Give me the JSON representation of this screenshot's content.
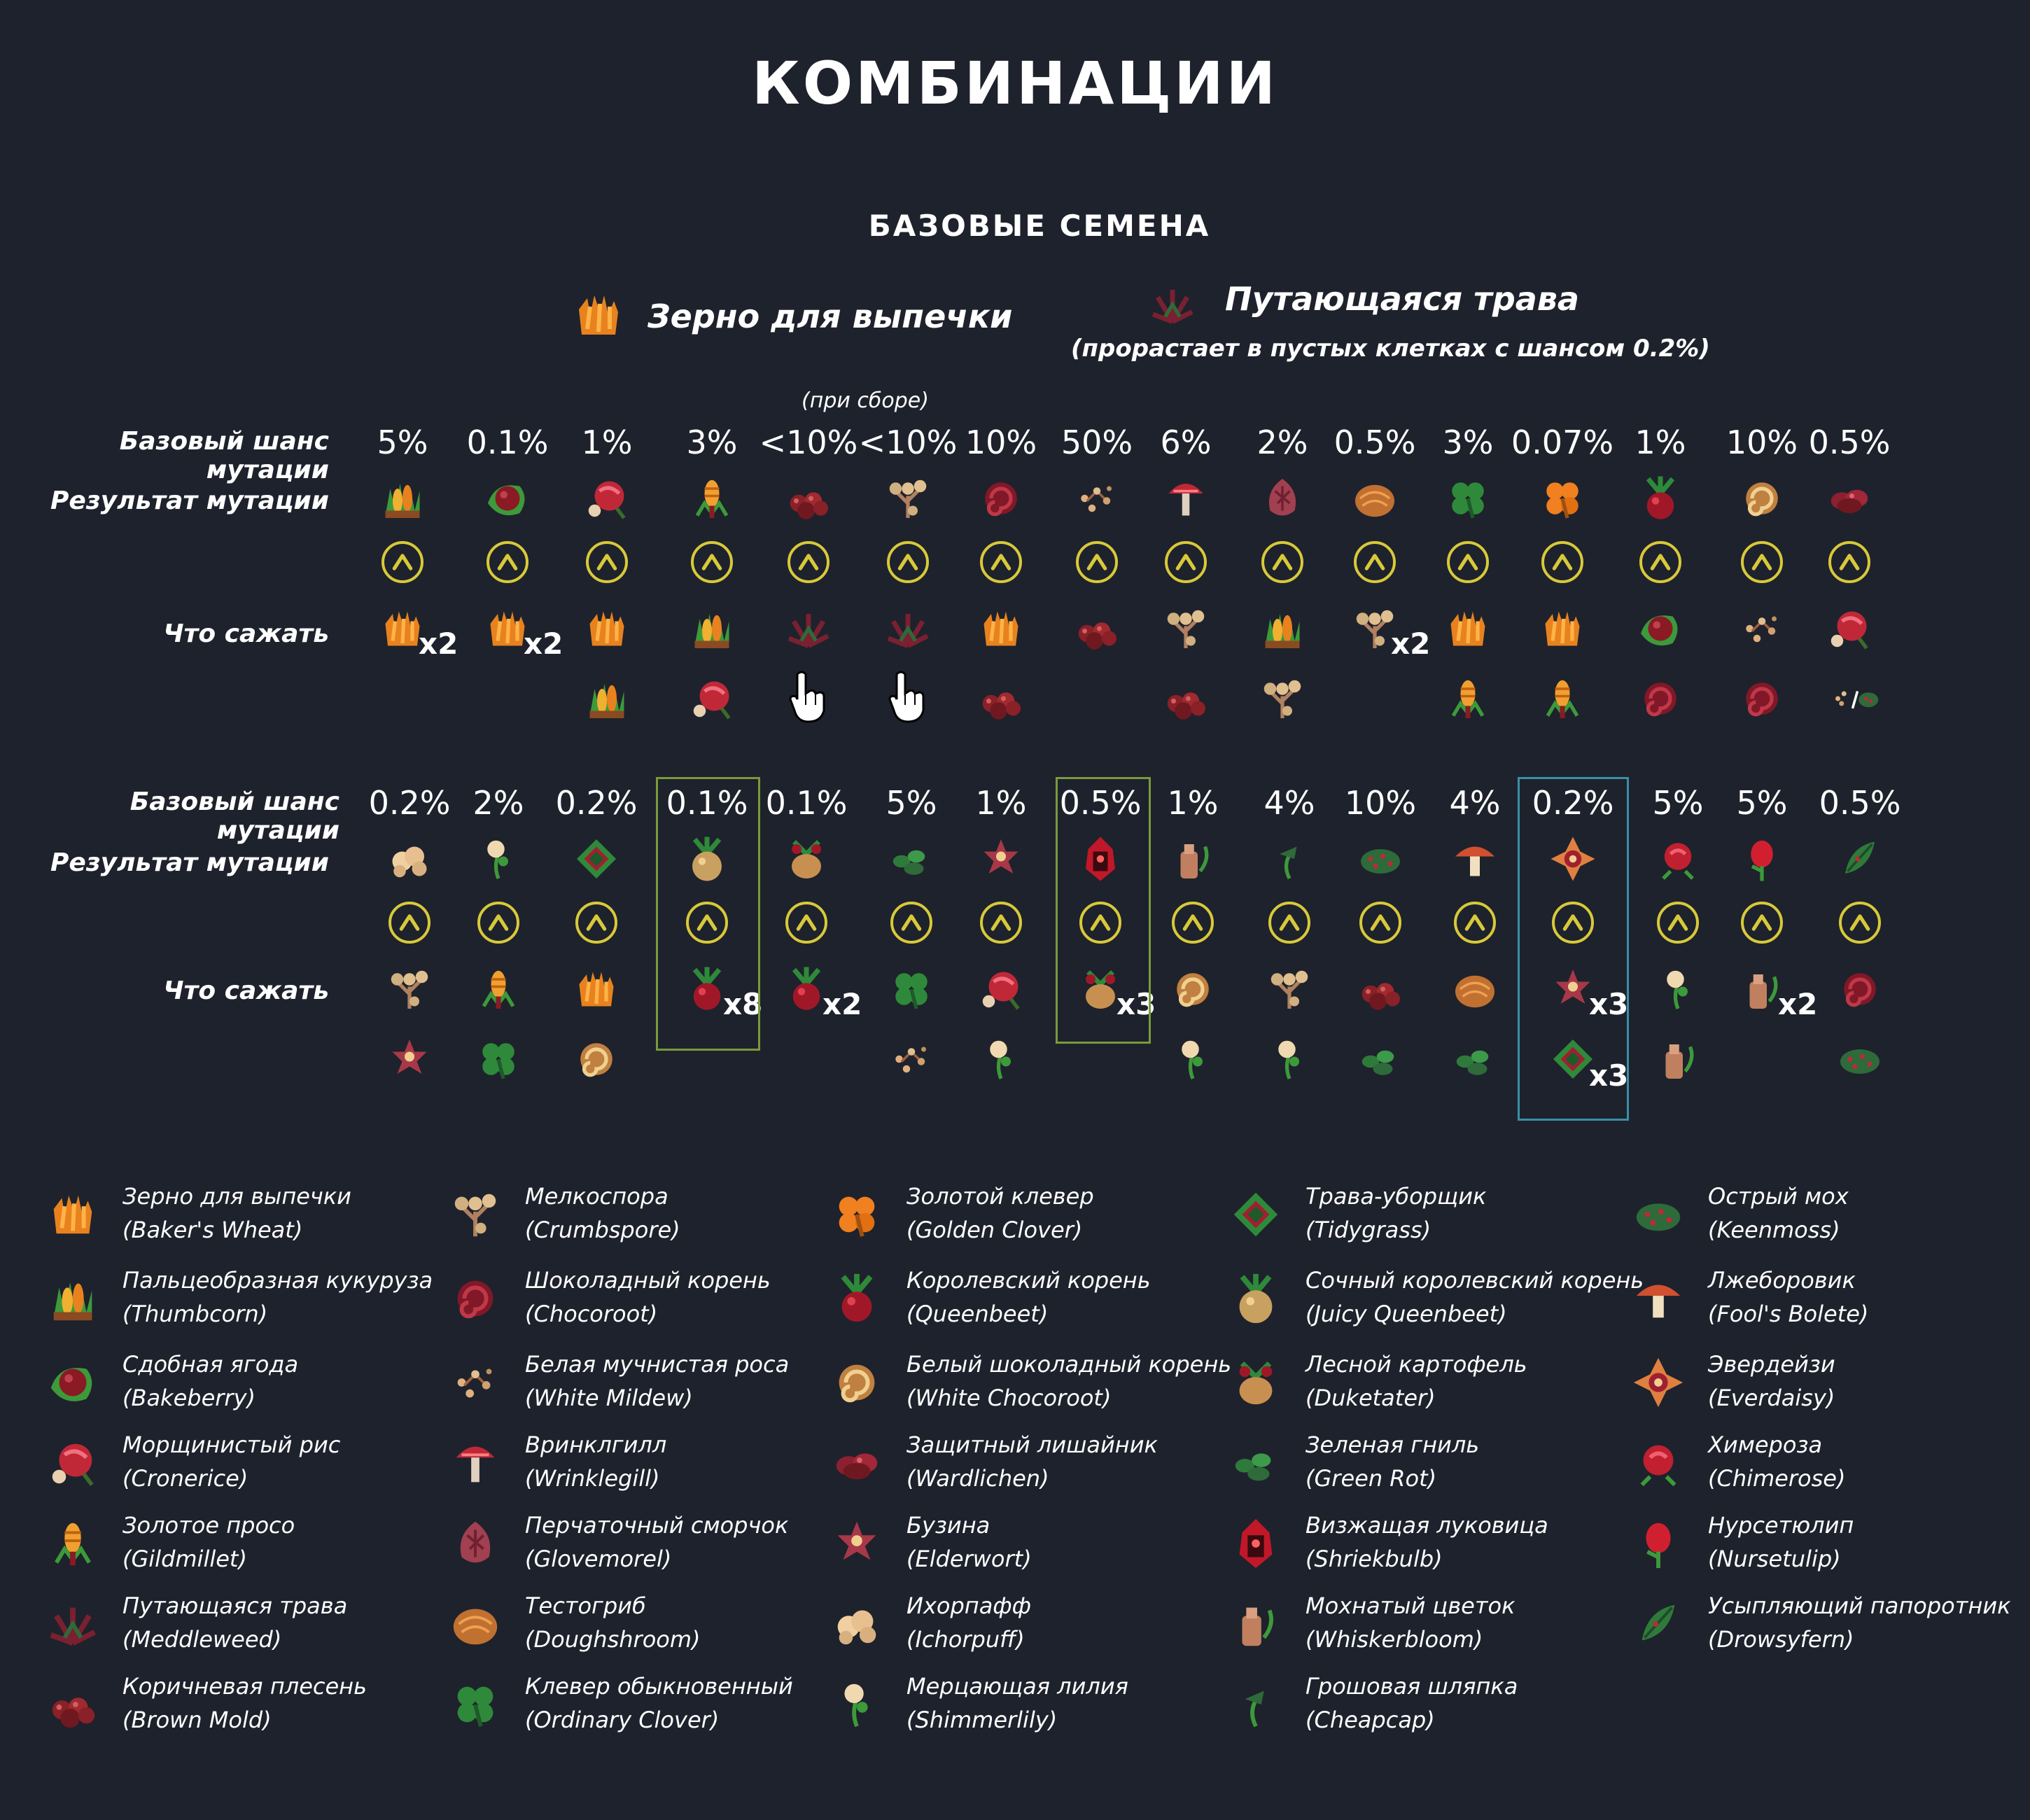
{
  "title": "КОМБИНАЦИИ",
  "subtitle": "БАЗОВЫЕ СЕМЕНА",
  "base_seeds": {
    "wheat": {
      "name": "Зерно для выпечки",
      "icon": "bakers-wheat-icon"
    },
    "meddle": {
      "name": "Путающаяся трава",
      "note": "(прорастает в пустых клетках с шансом 0.2%)",
      "icon": "meddleweed-icon"
    }
  },
  "harvest_note": "(при сборе)",
  "labels": {
    "chance": "Базовый шанс мутации",
    "result": "Результат мутации",
    "plant": "Что сажать"
  },
  "colors": {
    "background": "#1e222c",
    "arrow": "#d8c93a",
    "highlight_green": "#7a9a3a",
    "highlight_teal": "#3a8fa8"
  },
  "table1": [
    {
      "chance": "5%",
      "result": "thumbcorn",
      "plant": [
        "bakers-wheat"
      ],
      "mult": "x2"
    },
    {
      "chance": "0.1%",
      "result": "bakeberry",
      "plant": [
        "bakers-wheat"
      ],
      "mult": "x2"
    },
    {
      "chance": "1%",
      "result": "cronerice",
      "plant": [
        "bakers-wheat",
        "thumbcorn"
      ],
      "mult": ""
    },
    {
      "chance": "3%",
      "result": "gildmillet",
      "plant": [
        "thumbcorn",
        "cronerice"
      ],
      "mult": ""
    },
    {
      "chance": "<10%",
      "result": "brown-mold",
      "plant": [
        "meddleweed",
        "hand"
      ],
      "mult": ""
    },
    {
      "chance": "<10%",
      "result": "crumbspore",
      "plant": [
        "meddleweed",
        "hand"
      ],
      "mult": ""
    },
    {
      "chance": "10%",
      "result": "chocoroot",
      "plant": [
        "bakers-wheat",
        "brown-mold"
      ],
      "mult": ""
    },
    {
      "chance": "50%",
      "result": "white-mildew",
      "plant": [
        "brown-mold"
      ],
      "mult": ""
    },
    {
      "chance": "6%",
      "result": "wrinklegill",
      "plant": [
        "crumbspore",
        "brown-mold"
      ],
      "mult": ""
    },
    {
      "chance": "2%",
      "result": "glovemorel",
      "plant": [
        "thumbcorn",
        "crumbspore"
      ],
      "mult": ""
    },
    {
      "chance": "0.5%",
      "result": "doughshroom",
      "plant": [
        "crumbspore"
      ],
      "mult": "x2"
    },
    {
      "chance": "3%",
      "result": "ordinary-clover",
      "plant": [
        "bakers-wheat",
        "gildmillet"
      ],
      "mult": ""
    },
    {
      "chance": "0.07%",
      "result": "golden-clover",
      "plant": [
        "bakers-wheat",
        "gildmillet"
      ],
      "mult": ""
    },
    {
      "chance": "1%",
      "result": "queenbeet",
      "plant": [
        "bakeberry",
        "chocoroot"
      ],
      "mult": ""
    },
    {
      "chance": "10%",
      "result": "white-chocoroot",
      "plant": [
        "white-mildew",
        "chocoroot"
      ],
      "mult": ""
    },
    {
      "chance": "0.5%",
      "result": "wardlichen",
      "plant": [
        "cronerice",
        "white-mildew-or-keenmoss"
      ],
      "mult": ""
    }
  ],
  "table2": [
    {
      "chance": "0.2%",
      "result": "ichorpuff",
      "plant": [
        "crumbspore",
        "elderwort"
      ],
      "mult": ""
    },
    {
      "chance": "2%",
      "result": "shimmerlily",
      "plant": [
        "gildmillet",
        "ordinary-clover"
      ],
      "mult": ""
    },
    {
      "chance": "0.2%",
      "result": "tidygrass",
      "plant": [
        "bakers-wheat",
        "white-chocoroot"
      ],
      "mult": ""
    },
    {
      "chance": "0.1%",
      "result": "juicy-queenbeet",
      "plant": [
        "queenbeet"
      ],
      "mult": "x8"
    },
    {
      "chance": "0.1%",
      "result": "duketater",
      "plant": [
        "queenbeet"
      ],
      "mult": "x2"
    },
    {
      "chance": "5%",
      "result": "green-rot",
      "plant": [
        "ordinary-clover",
        "white-mildew"
      ],
      "mult": ""
    },
    {
      "chance": "1%",
      "result": "elderwort",
      "plant": [
        "cronerice",
        "shimmerlily"
      ],
      "mult": ""
    },
    {
      "chance": "0.5%",
      "result": "shriekbulb",
      "plant": [
        "duketater"
      ],
      "mult": "x3"
    },
    {
      "chance": "1%",
      "result": "whiskerbloom",
      "plant": [
        "white-chocoroot",
        "shimmerlily"
      ],
      "mult": ""
    },
    {
      "chance": "4%",
      "result": "cheapcap",
      "plant": [
        "crumbspore",
        "shimmerlily"
      ],
      "mult": ""
    },
    {
      "chance": "10%",
      "result": "keenmoss",
      "plant": [
        "brown-mold",
        "green-rot"
      ],
      "mult": ""
    },
    {
      "chance": "4%",
      "result": "fools-bolete",
      "plant": [
        "doughshroom",
        "green-rot"
      ],
      "mult": ""
    },
    {
      "chance": "0.2%",
      "result": "everdaisy",
      "plant": [
        "elderwort",
        "tidygrass"
      ],
      "mult": "x3",
      "mult2": "x3"
    },
    {
      "chance": "5%",
      "result": "chimerose",
      "plant": [
        "shimmerlily",
        "whiskerbloom"
      ],
      "mult": ""
    },
    {
      "chance": "5%",
      "result": "nursetulip",
      "plant": [
        "whiskerbloom"
      ],
      "mult": "x2"
    },
    {
      "chance": "0.5%",
      "result": "drowsyfern",
      "plant": [
        "chocoroot",
        "keenmoss"
      ],
      "mult": ""
    }
  ],
  "legend": [
    [
      {
        "ru": "Зерно для выпечки",
        "en": "(Baker's Wheat)",
        "icon": "bakers-wheat"
      },
      {
        "ru": "Пальцеобразная кукуруза",
        "en": "(Thumbcorn)",
        "icon": "thumbcorn"
      },
      {
        "ru": "Сдобная ягода",
        "en": "(Bakeberry)",
        "icon": "bakeberry"
      },
      {
        "ru": "Морщинистый рис",
        "en": "(Cronerice)",
        "icon": "cronerice"
      },
      {
        "ru": "Золотое просо",
        "en": "(Gildmillet)",
        "icon": "gildmillet"
      },
      {
        "ru": "Путающаяся трава",
        "en": "(Meddleweed)",
        "icon": "meddleweed"
      },
      {
        "ru": "Коричневая плесень",
        "en": "(Brown Mold)",
        "icon": "brown-mold"
      }
    ],
    [
      {
        "ru": "Мелкоспора",
        "en": "(Crumbspore)",
        "icon": "crumbspore"
      },
      {
        "ru": "Шоколадный корень",
        "en": "(Chocoroot)",
        "icon": "chocoroot"
      },
      {
        "ru": "Белая мучнистая роса",
        "en": "(White Mildew)",
        "icon": "white-mildew"
      },
      {
        "ru": "Вринклгилл",
        "en": "(Wrinklegill)",
        "icon": "wrinklegill"
      },
      {
        "ru": "Перчаточный сморчок",
        "en": "(Glovemorel)",
        "icon": "glovemorel"
      },
      {
        "ru": "Тестогриб",
        "en": "(Doughshroom)",
        "icon": "doughshroom"
      },
      {
        "ru": "Клевер обыкновенный",
        "en": "(Ordinary Clover)",
        "icon": "ordinary-clover"
      }
    ],
    [
      {
        "ru": "Золотой клевер",
        "en": "(Golden Clover)",
        "icon": "golden-clover"
      },
      {
        "ru": "Королевский корень",
        "en": "(Queenbeet)",
        "icon": "queenbeet"
      },
      {
        "ru": "Белый шоколадный корень",
        "en": "(White Chocoroot)",
        "icon": "white-chocoroot"
      },
      {
        "ru": "Защитный лишайник",
        "en": "(Wardlichen)",
        "icon": "wardlichen"
      },
      {
        "ru": "Бузина",
        "en": "(Elderwort)",
        "icon": "elderwort"
      },
      {
        "ru": "Ихорпафф",
        "en": "(Ichorpuff)",
        "icon": "ichorpuff"
      },
      {
        "ru": "Мерцающая лилия",
        "en": "(Shimmerlily)",
        "icon": "shimmerlily"
      }
    ],
    [
      {
        "ru": "Трава-уборщик",
        "en": "(Tidygrass)",
        "icon": "tidygrass"
      },
      {
        "ru": "Сочный королевский корень",
        "en": "(Juicy Queenbeet)",
        "icon": "juicy-queenbeet"
      },
      {
        "ru": "Лесной картофель",
        "en": "(Duketater)",
        "icon": "duketater"
      },
      {
        "ru": "Зеленая гниль",
        "en": "(Green Rot)",
        "icon": "green-rot"
      },
      {
        "ru": "Визжащая луковица",
        "en": "(Shriekbulb)",
        "icon": "shriekbulb"
      },
      {
        "ru": "Мохнатый цветок",
        "en": "(Whiskerbloom)",
        "icon": "whiskerbloom"
      },
      {
        "ru": "Грошовая шляпка",
        "en": "(Cheapcap)",
        "icon": "cheapcap"
      }
    ],
    [
      {
        "ru": "Острый мох",
        "en": "(Keenmoss)",
        "icon": "keenmoss"
      },
      {
        "ru": "Лжеборовик",
        "en": "(Fool's Bolete)",
        "icon": "fools-bolete"
      },
      {
        "ru": "Эвердейзи",
        "en": "(Everdaisy)",
        "icon": "everdaisy"
      },
      {
        "ru": "Химероза",
        "en": "(Chimerose)",
        "icon": "chimerose"
      },
      {
        "ru": "Нурсетюлип",
        "en": "(Nursetulip)",
        "icon": "nursetulip"
      },
      {
        "ru": "Усыпляющий папоротник",
        "en": "(Drowsyfern)",
        "icon": "drowsyfern"
      }
    ]
  ]
}
